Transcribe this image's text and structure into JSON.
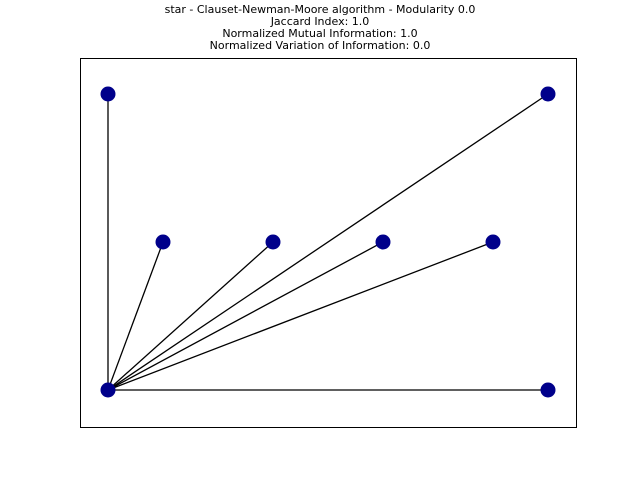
{
  "title": {
    "line1": "star - Clauset-Newman-Moore algorithm - Modularity 0.0",
    "line2": "Jaccard Index: 1.0",
    "line3": "Normalized Mutual Information: 1.0",
    "line4": "Normalized Variation of Information: 0.0"
  },
  "graph": {
    "type": "network",
    "layout": "star",
    "hub": "n0",
    "node_color": "#00008b",
    "edge_color": "#000000",
    "nodes": [
      {
        "id": "n0",
        "community": 0
      },
      {
        "id": "n1",
        "community": 0
      },
      {
        "id": "n2",
        "community": 0
      },
      {
        "id": "n3",
        "community": 0
      },
      {
        "id": "n4",
        "community": 0
      },
      {
        "id": "n5",
        "community": 0
      },
      {
        "id": "n6",
        "community": 0
      },
      {
        "id": "n7",
        "community": 0
      }
    ],
    "edges": [
      [
        "n0",
        "n1"
      ],
      [
        "n0",
        "n2"
      ],
      [
        "n0",
        "n3"
      ],
      [
        "n0",
        "n4"
      ],
      [
        "n0",
        "n5"
      ],
      [
        "n0",
        "n6"
      ],
      [
        "n0",
        "n7"
      ]
    ]
  }
}
